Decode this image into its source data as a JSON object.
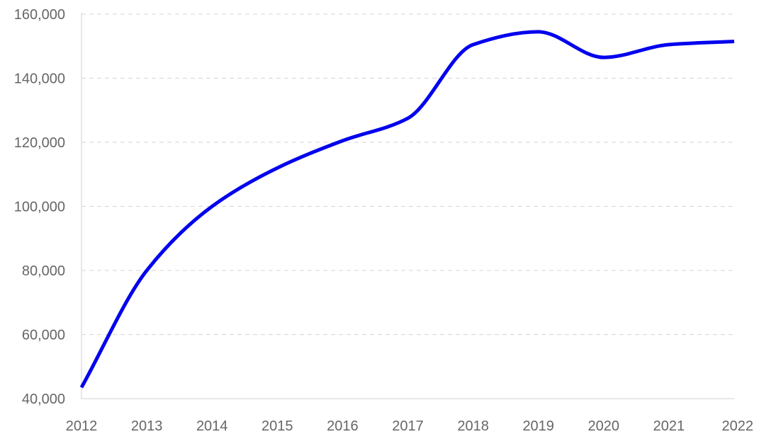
{
  "chart_data": {
    "type": "line",
    "title": "",
    "xlabel": "",
    "ylabel": "",
    "x": [
      "2012",
      "2013",
      "2014",
      "2015",
      "2016",
      "2017",
      "2018",
      "2019",
      "2020",
      "2021",
      "2022"
    ],
    "series": [
      {
        "values": [
          43500,
          80000,
          100000,
          112000,
          120500,
          127500,
          150500,
          154500,
          146500,
          150500,
          151500
        ],
        "color": "#0000ee"
      }
    ],
    "ylim": [
      40000,
      160000
    ],
    "y_ticks": [
      40000,
      60000,
      80000,
      100000,
      120000,
      140000,
      160000
    ],
    "y_tick_labels": [
      "40,000",
      "60,000",
      "80,000",
      "100,000",
      "120,000",
      "140,000",
      "160,000"
    ],
    "grid": true,
    "legend": "none",
    "colors": {
      "line": "#0000ee",
      "grid": "#dcdcdc",
      "tick_text": "#666666"
    }
  }
}
